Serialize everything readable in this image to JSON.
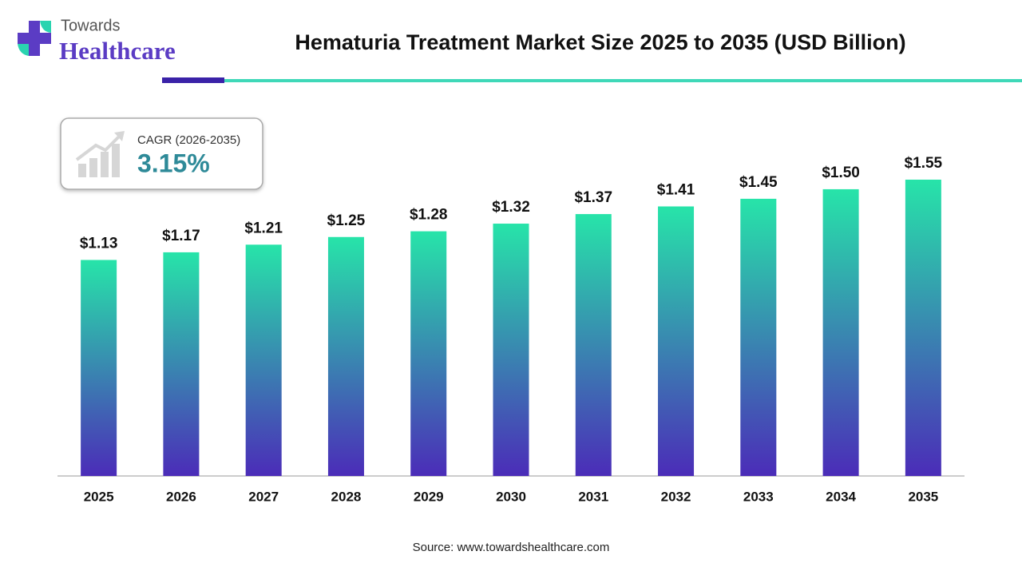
{
  "brand": {
    "line1": "Towards",
    "line2": "Healthcare"
  },
  "chart_data": {
    "type": "bar",
    "title": "Hematuria Treatment Market Size 2025 to 2035 (USD Billion)",
    "categories": [
      "2025",
      "2026",
      "2027",
      "2028",
      "2029",
      "2030",
      "2031",
      "2032",
      "2033",
      "2034",
      "2035"
    ],
    "values": [
      1.13,
      1.17,
      1.21,
      1.25,
      1.28,
      1.32,
      1.37,
      1.41,
      1.45,
      1.5,
      1.55
    ],
    "value_labels": [
      "$1.13",
      "$1.17",
      "$1.21",
      "$1.25",
      "$1.28",
      "$1.32",
      "$1.37",
      "$1.41",
      "$1.45",
      "$1.50",
      "$1.55"
    ],
    "gradient": [
      "#27e4a9",
      "#4b2cb8"
    ],
    "ylim": [
      0,
      1.6
    ],
    "annotation": {
      "label": "CAGR (2026-2035)",
      "value": "3.15%"
    },
    "source": "Source: www.towardshealthcare.com"
  }
}
